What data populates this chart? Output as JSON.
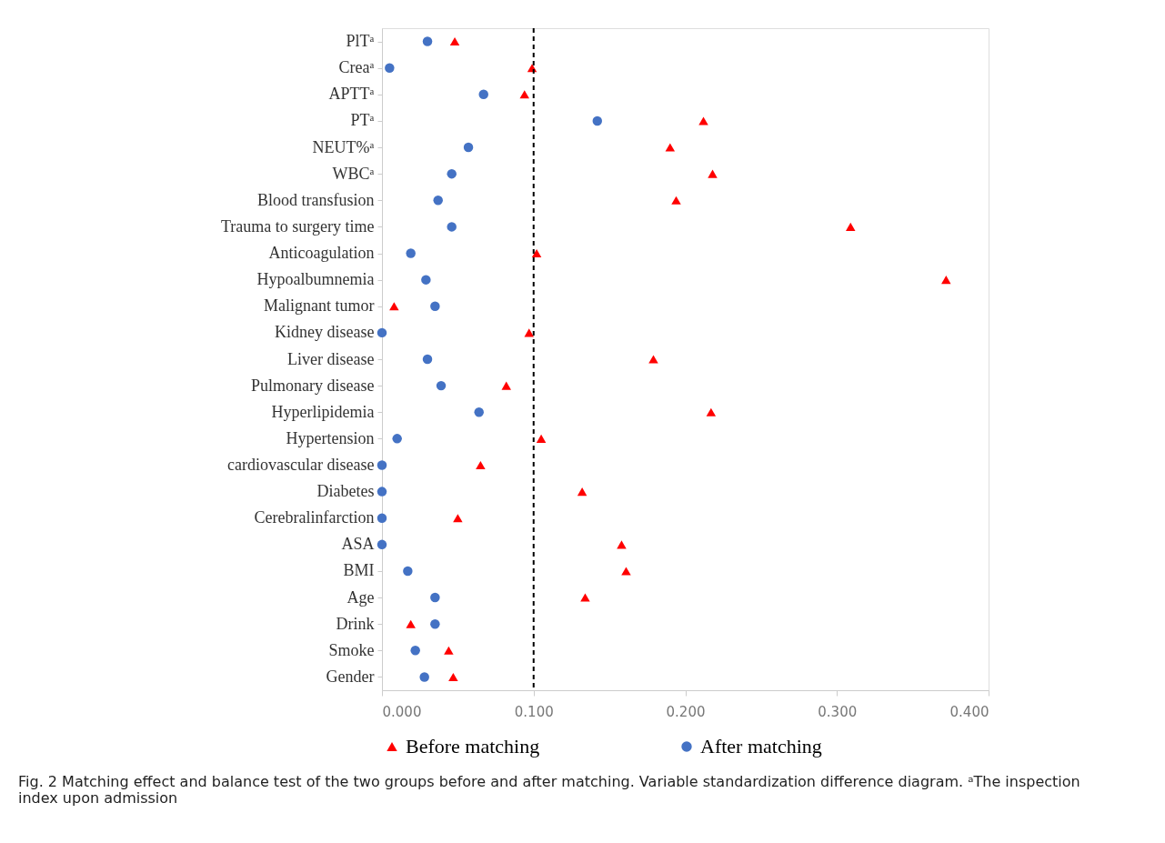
{
  "chart_data": {
    "type": "scatter",
    "categories": [
      "PlTᵃ",
      "Creaᵃ",
      "APTTᵃ",
      "PTᵃ",
      "NEUT%ᵃ",
      "WBCᵃ",
      "Blood transfusion",
      "Trauma to surgery time",
      "Anticoagulation",
      "Hypoalbumnemia",
      "Malignant tumor",
      "Kidney disease",
      "Liver disease",
      "Pulmonary disease",
      "Hyperlipidemia",
      "Hypertension",
      "cardiovascular disease",
      "Diabetes",
      "Cerebralinfarction",
      "ASA",
      "BMI",
      "Age",
      "Drink",
      "Smoke",
      "Gender"
    ],
    "series": [
      {
        "name": "Before matching",
        "color": "#ff0000",
        "marker": "triangle",
        "values": [
          0.048,
          0.099,
          0.094,
          0.212,
          0.19,
          0.218,
          0.194,
          0.309,
          0.102,
          0.372,
          0.008,
          0.097,
          0.179,
          0.082,
          0.217,
          0.105,
          0.065,
          0.132,
          0.05,
          0.158,
          0.161,
          0.134,
          0.019,
          0.044,
          0.047
        ]
      },
      {
        "name": "After matching",
        "color": "#4472c4",
        "marker": "circle",
        "values": [
          0.03,
          0.005,
          0.067,
          0.142,
          0.057,
          0.046,
          0.037,
          0.046,
          0.019,
          0.029,
          0.035,
          0.0,
          0.03,
          0.039,
          0.064,
          0.01,
          0.0,
          0.0,
          0.0,
          0.0,
          0.017,
          0.035,
          0.035,
          0.022,
          0.028
        ]
      }
    ],
    "orientation": "horizontal",
    "xlim": [
      0,
      0.4
    ],
    "xticks": [
      {
        "value": 0,
        "label": "0.000"
      },
      {
        "value": 0.1,
        "label": "0.100"
      },
      {
        "value": 0.2,
        "label": "0.200"
      },
      {
        "value": 0.3,
        "label": "0.300"
      },
      {
        "value": 0.4,
        "label": "0.400"
      }
    ],
    "ref_lines": [
      {
        "axis": "x",
        "value": 0.1,
        "color": "#000000",
        "line_style": "dashed"
      }
    ],
    "grid": false,
    "legend": "bottom",
    "annotations": [
      "Fig. 2  Matching effect and balance test of the two groups before and after matching. Variable standardization difference diagram. ᵃThe inspection index upon admission"
    ]
  }
}
